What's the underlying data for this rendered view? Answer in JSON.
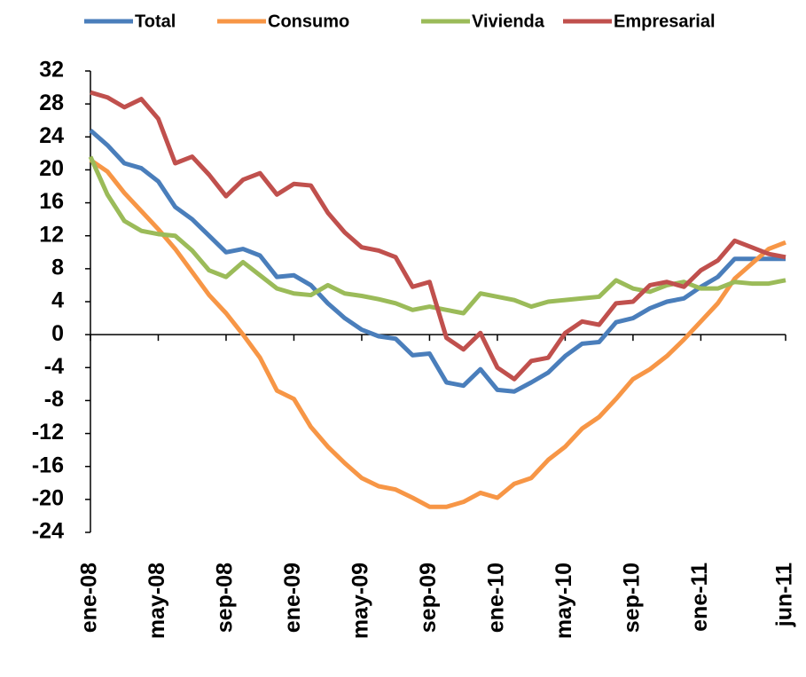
{
  "chart_data": {
    "type": "line",
    "categories": [
      "ene-08",
      null,
      null,
      null,
      "may-08",
      null,
      null,
      null,
      "sep-08",
      null,
      null,
      null,
      "ene-09",
      null,
      null,
      null,
      "may-09",
      null,
      null,
      null,
      "sep-09",
      null,
      null,
      null,
      "ene-10",
      null,
      null,
      null,
      "may-10",
      null,
      null,
      null,
      "sep-10",
      null,
      null,
      null,
      "ene-11",
      null,
      null,
      null,
      null,
      "jun-11"
    ],
    "series": [
      {
        "name": "Total",
        "color": "#4a7ebb",
        "values": [
          24.8,
          23,
          20.8,
          20.2,
          18.6,
          15.5,
          14,
          12,
          10,
          10.4,
          9.6,
          7,
          7.2,
          6,
          3.8,
          2,
          0.6,
          -0.2,
          -0.5,
          -2.5,
          -2.3,
          -5.8,
          -6.2,
          -4.2,
          -6.7,
          -6.9,
          -5.8,
          -4.6,
          -2.6,
          -1.1,
          -0.9,
          1.5,
          2,
          3.2,
          4,
          4.4,
          5.8,
          7,
          9.2,
          9.2,
          9.2,
          9.2
        ]
      },
      {
        "name": "Consumo",
        "color": "#f79646",
        "values": [
          21.2,
          19.8,
          17.2,
          15,
          12.8,
          10.4,
          7.6,
          4.8,
          2.6,
          0,
          -2.8,
          -6.8,
          -7.8,
          -11.2,
          -13.6,
          -15.6,
          -17.4,
          -18.4,
          -18.8,
          -19.8,
          -20.9,
          -20.9,
          -20.3,
          -19.2,
          -19.8,
          -18.1,
          -17.4,
          -15.2,
          -13.6,
          -11.4,
          -10,
          -7.8,
          -5.4,
          -4.2,
          -2.6,
          -0.6,
          1.6,
          3.8,
          6.8,
          8.6,
          10.4,
          11.2
        ]
      },
      {
        "name": "Vivienda",
        "color": "#9bbb59",
        "values": [
          21.6,
          17,
          13.8,
          12.6,
          12.2,
          12,
          10.2,
          7.8,
          7,
          8.8,
          7.2,
          5.6,
          5,
          4.8,
          6,
          5,
          4.7,
          4.3,
          3.8,
          3,
          3.4,
          3,
          2.6,
          5,
          4.6,
          4.2,
          3.4,
          4,
          4.2,
          4.4,
          4.6,
          6.6,
          5.6,
          5.2,
          6,
          6.4,
          5.6,
          5.6,
          6.4,
          6.2,
          6.2,
          6.6
        ]
      },
      {
        "name": "Empresarial",
        "color": "#c0504d",
        "values": [
          29.4,
          28.8,
          27.6,
          28.6,
          26.2,
          20.8,
          21.6,
          19.4,
          16.8,
          18.8,
          19.6,
          17,
          18.3,
          18.1,
          14.8,
          12.4,
          10.6,
          10.2,
          9.4,
          5.8,
          6.4,
          -0.4,
          -1.8,
          0.2,
          -4,
          -5.4,
          -3.2,
          -2.8,
          0.2,
          1.6,
          1.2,
          3.8,
          4,
          6,
          6.4,
          5.8,
          7.8,
          9,
          11.4,
          10.6,
          9.8,
          9.4
        ]
      }
    ],
    "ylim": [
      -24,
      32
    ],
    "yticks": [
      -24,
      -20,
      -16,
      -12,
      -8,
      -4,
      0,
      4,
      8,
      12,
      16,
      20,
      24,
      28,
      32
    ],
    "legend": "top"
  }
}
